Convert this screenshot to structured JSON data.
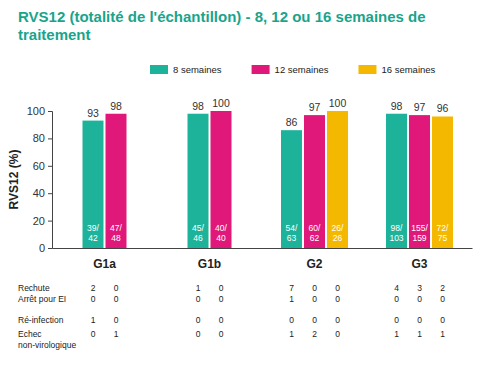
{
  "chart_data": {
    "type": "bar",
    "title": "RVS12 (totalité de l'échantillon) - 8, 12 ou 16 semaines de traitement",
    "y_label": "RVS12 (%)",
    "categories": [
      "G1a",
      "G1b",
      "G2",
      "G3"
    ],
    "series": [
      {
        "name": "8 semaines",
        "color": "#1db39a",
        "values": [
          93,
          98,
          86,
          98
        ],
        "fractions": [
          "39/42",
          "45/46",
          "54/63",
          "98/103"
        ]
      },
      {
        "name": "12 semaines",
        "color": "#e0187a",
        "values": [
          98,
          100,
          97,
          97
        ],
        "fractions": [
          "47/48",
          "40/40",
          "60/62",
          "155/159"
        ]
      },
      {
        "name": "16 semaines",
        "color": "#f5b800",
        "values": [
          null,
          null,
          100,
          96
        ],
        "fractions": [
          null,
          null,
          "26/26",
          "72/75"
        ]
      }
    ],
    "ylim": [
      0,
      100
    ],
    "yticks": [
      0,
      20,
      40,
      60,
      80,
      100
    ],
    "grid": false,
    "legend": "top",
    "data_labels": true,
    "table": {
      "rows": [
        {
          "label": "Rechute",
          "values": [
            [
              2,
              0
            ],
            [
              1,
              0
            ],
            [
              7,
              0,
              0
            ],
            [
              4,
              3,
              2
            ]
          ]
        },
        {
          "label": "Arrêt pour EI",
          "values": [
            [
              0,
              0
            ],
            [
              0,
              0
            ],
            [
              1,
              0,
              0
            ],
            [
              0,
              0,
              0
            ]
          ]
        },
        {
          "label": "Ré-infection",
          "values": [
            [
              1,
              0
            ],
            [
              0,
              0
            ],
            [
              0,
              0,
              0
            ],
            [
              0,
              0,
              0
            ]
          ]
        },
        {
          "label": "Echec non-virologique",
          "values": [
            [
              0,
              1
            ],
            [
              0,
              0
            ],
            [
              1,
              2,
              0
            ],
            [
              1,
              1,
              1
            ]
          ]
        }
      ]
    }
  }
}
